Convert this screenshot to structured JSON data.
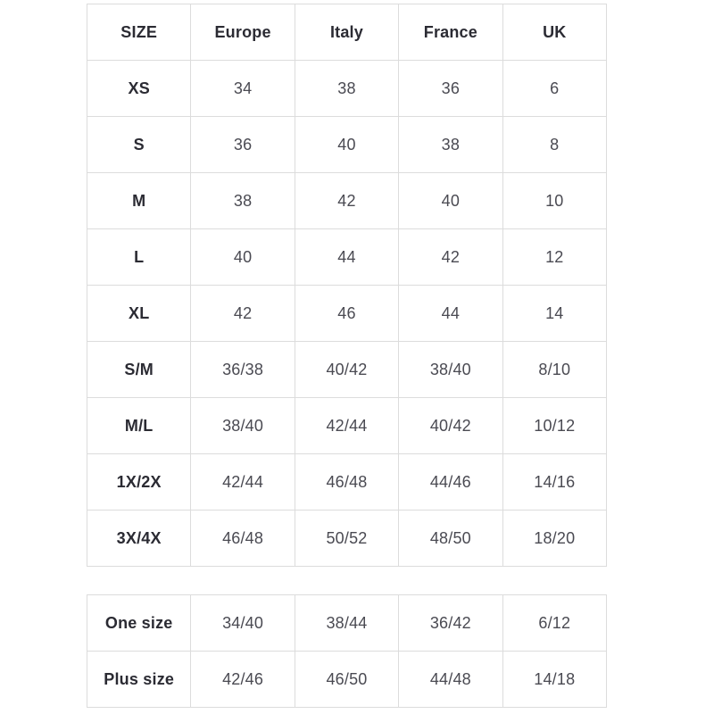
{
  "page": {
    "background_color": "#ffffff",
    "border_color": "#dcdcdc",
    "header_text_color": "#2b2b33",
    "cell_text_color": "#4a4a52"
  },
  "tables": {
    "size_conversion": {
      "headers": [
        "SIZE",
        "Europe",
        "Italy",
        "France",
        "UK"
      ],
      "rows": [
        [
          "XS",
          "34",
          "38",
          "36",
          "6"
        ],
        [
          "S",
          "36",
          "40",
          "38",
          "8"
        ],
        [
          "M",
          "38",
          "42",
          "40",
          "10"
        ],
        [
          "L",
          "40",
          "44",
          "42",
          "12"
        ],
        [
          "XL",
          "42",
          "46",
          "44",
          "14"
        ],
        [
          "S/M",
          "36/38",
          "40/42",
          "38/40",
          "8/10"
        ],
        [
          "M/L",
          "38/40",
          "42/44",
          "40/42",
          "10/12"
        ],
        [
          "1X/2X",
          "42/44",
          "46/48",
          "44/46",
          "14/16"
        ],
        [
          "3X/4X",
          "46/48",
          "50/52",
          "48/50",
          "18/20"
        ]
      ]
    },
    "special_sizes": {
      "headers": [],
      "rows": [
        [
          "One size",
          "34/40",
          "38/44",
          "36/42",
          "6/12"
        ],
        [
          "Plus size",
          "42/46",
          "46/50",
          "44/48",
          "14/18"
        ]
      ]
    }
  }
}
